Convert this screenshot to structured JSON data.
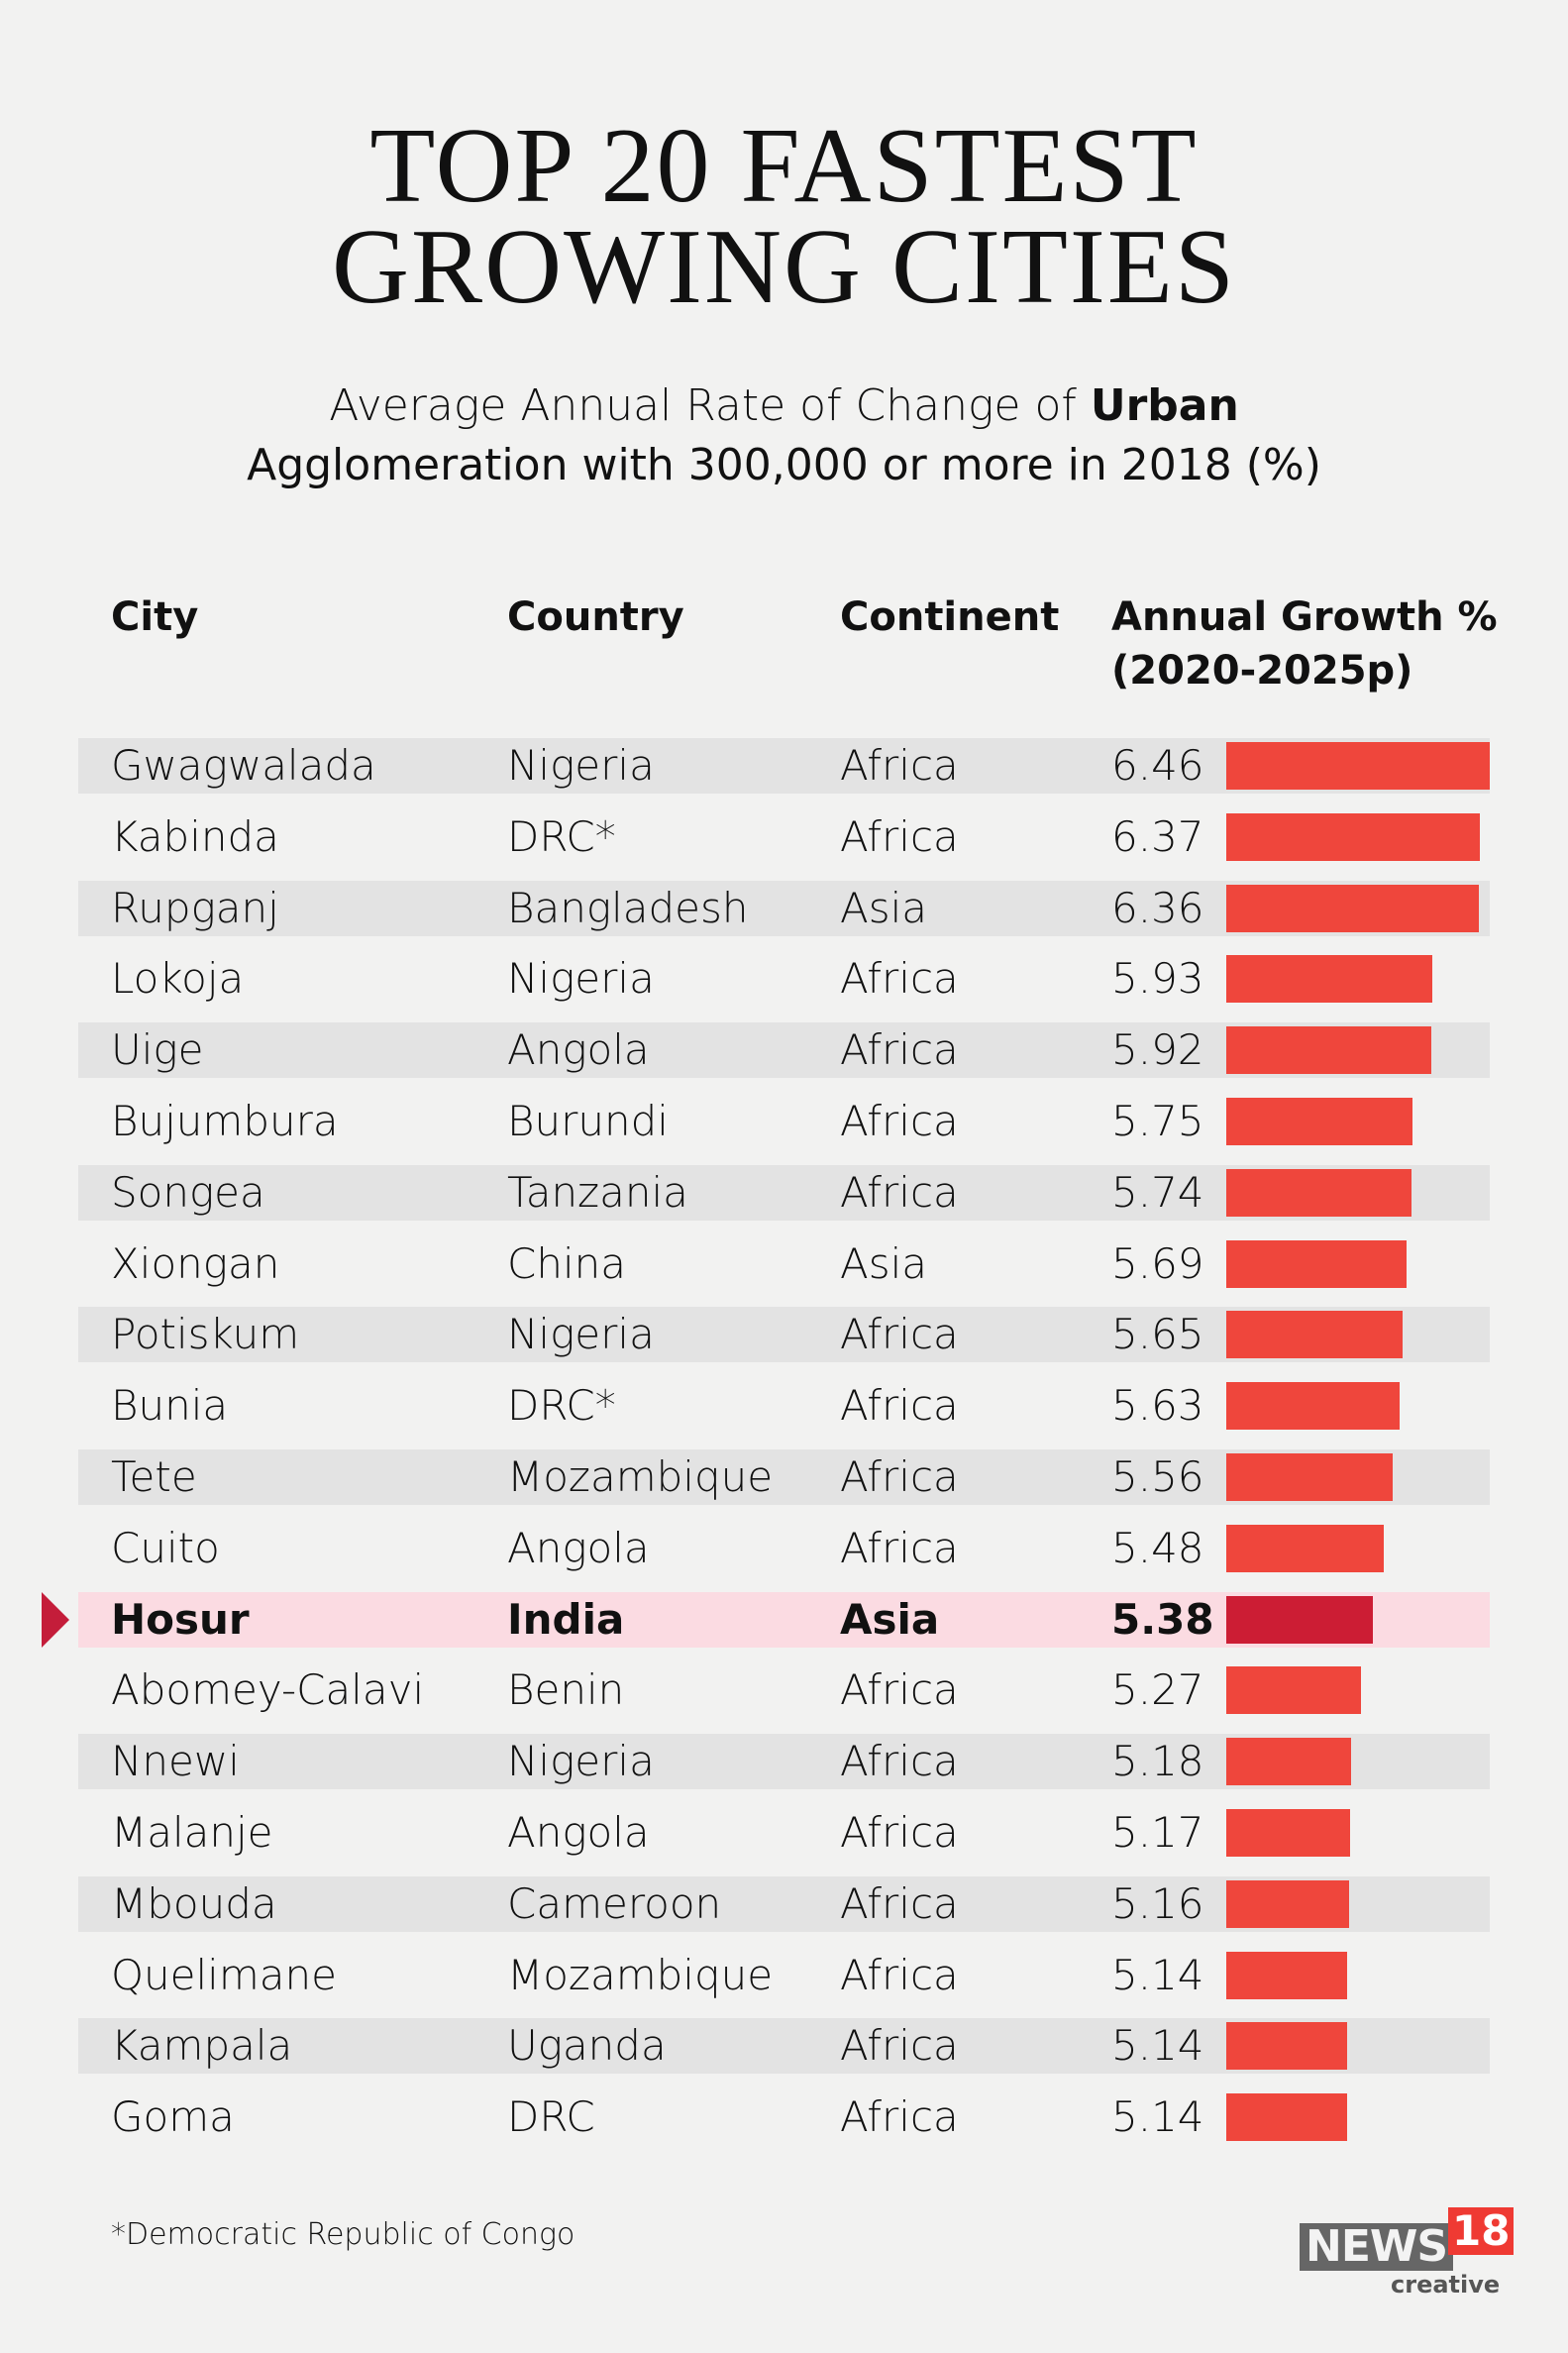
{
  "title": {
    "line1": "TOP 20 FASTEST",
    "line2": "GROWING CITIES"
  },
  "subtitle": {
    "part1": "Average Annual Rate of Change of ",
    "part1_bold": "Urban",
    "line2": "Agglomeration with 300,000 or more in 2018 (%)"
  },
  "headers": {
    "city": "City",
    "country": "Country",
    "continent": "Continent",
    "growth_line1": "Annual Growth %",
    "growth_line2": "(2020-2025p)"
  },
  "colors": {
    "bar": "#ef463c",
    "highlight_bar": "#cc1d34",
    "highlight_row": "#fbdbe2",
    "stripe": "#e3e3e3"
  },
  "chart_data": {
    "type": "table",
    "highlighted": "Hosur",
    "rows": [
      {
        "city": "Gwagwalada",
        "country": "Nigeria",
        "continent": "Africa",
        "growth": "6.46"
      },
      {
        "city": "Kabinda",
        "country": "DRC*",
        "continent": "Africa",
        "growth": "6.37"
      },
      {
        "city": "Rupganj",
        "country": "Bangladesh",
        "continent": "Asia",
        "growth": "6.36"
      },
      {
        "city": "Lokoja",
        "country": "Nigeria",
        "continent": "Africa",
        "growth": "5.93"
      },
      {
        "city": "Uige",
        "country": "Angola",
        "continent": "Africa",
        "growth": "5.92"
      },
      {
        "city": "Bujumbura",
        "country": "Burundi",
        "continent": "Africa",
        "growth": "5.75"
      },
      {
        "city": "Songea",
        "country": "Tanzania",
        "continent": "Africa",
        "growth": "5.74"
      },
      {
        "city": "Xiongan",
        "country": "China",
        "continent": "Asia",
        "growth": "5.69"
      },
      {
        "city": "Potiskum",
        "country": "Nigeria",
        "continent": "Africa",
        "growth": "5.65"
      },
      {
        "city": "Bunia",
        "country": "DRC*",
        "continent": "Africa",
        "growth": "5.63"
      },
      {
        "city": "Tete",
        "country": "Mozambique",
        "continent": "Africa",
        "growth": "5.56"
      },
      {
        "city": "Cuito",
        "country": "Angola",
        "continent": "Africa",
        "growth": "5.48"
      },
      {
        "city": "Hosur",
        "country": "India",
        "continent": "Asia",
        "growth": "5.38"
      },
      {
        "city": "Abomey-Calavi",
        "country": "Benin",
        "continent": "Africa",
        "growth": "5.27"
      },
      {
        "city": "Nnewi",
        "country": "Nigeria",
        "continent": "Africa",
        "growth": "5.18"
      },
      {
        "city": "Malanje",
        "country": "Angola",
        "continent": "Africa",
        "growth": "5.17"
      },
      {
        "city": "Mbouda",
        "country": "Cameroon",
        "continent": "Africa",
        "growth": "5.16"
      },
      {
        "city": "Quelimane",
        "country": "Mozambique",
        "continent": "Africa",
        "growth": "5.14"
      },
      {
        "city": "Kampala",
        "country": "Uganda",
        "continent": "Africa",
        "growth": "5.14"
      },
      {
        "city": "Goma",
        "country": "DRC",
        "continent": "Africa",
        "growth": "5.14"
      }
    ]
  },
  "footnote": "*Democratic Republic of Congo",
  "logo": {
    "brand": "NEWS",
    "number": "18",
    "tag": "creative"
  }
}
